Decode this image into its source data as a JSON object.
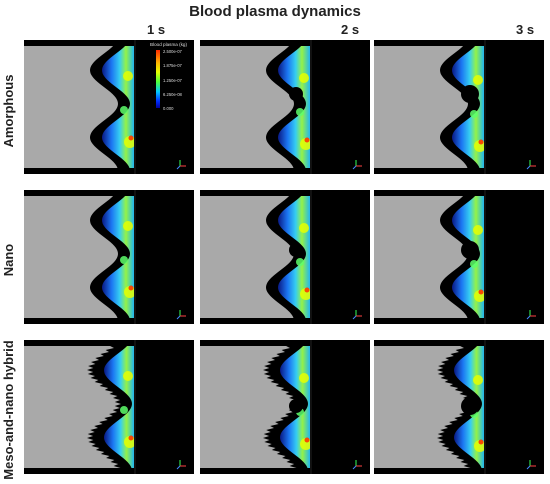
{
  "figure": {
    "title": "Blood plasma dynamics",
    "time_labels": [
      "1 s",
      "2 s",
      "3 s"
    ],
    "row_labels": [
      "Amorphous",
      "Nano",
      "Meso-and-nano hybrid"
    ],
    "legend": {
      "title": "Blood plasma (kg)",
      "ticks": [
        "2.500e-07",
        "1.875e-07",
        "1.250e-07",
        "6.250e-08",
        "0.000"
      ]
    },
    "colors": {
      "domain": "#a9a9a9",
      "background": "#000000",
      "high": "#ff2a00",
      "mid": "#e6ff00",
      "low": "#0030ff"
    }
  }
}
